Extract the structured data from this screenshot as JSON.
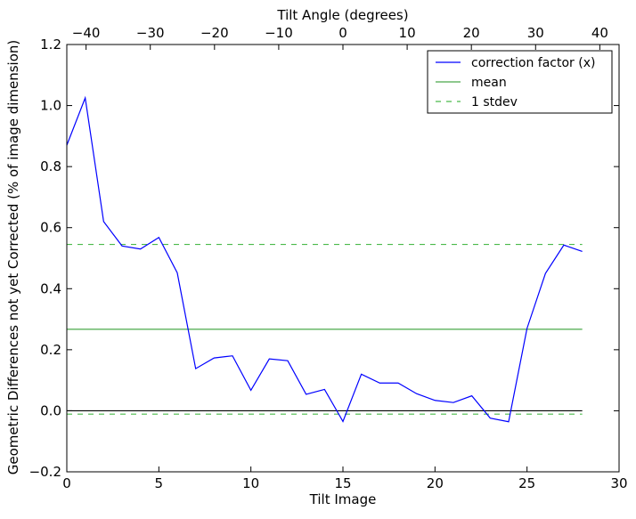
{
  "chart_data": {
    "type": "line",
    "xlabel": "Tilt Image",
    "ylabel": "Geometric Differences not yet Corrected (% of image dimension)",
    "top_xlabel": "Tilt Angle (degrees)",
    "xlim": [
      0,
      30
    ],
    "ylim": [
      -0.2,
      1.2
    ],
    "top_xlim": [
      -43,
      43
    ],
    "xticks": [
      0,
      5,
      10,
      15,
      20,
      25,
      30
    ],
    "yticks": [
      -0.2,
      0.0,
      0.2,
      0.4,
      0.6,
      0.8,
      1.0,
      1.2
    ],
    "ytick_labels": [
      "−0.2",
      "0.0",
      "0.2",
      "0.4",
      "0.6",
      "0.8",
      "1.0",
      "1.2"
    ],
    "top_xticks": [
      -40,
      -30,
      -20,
      -10,
      0,
      10,
      20,
      30,
      40
    ],
    "top_xtick_labels": [
      "−40",
      "−30",
      "−20",
      "−10",
      "0",
      "10",
      "20",
      "30",
      "40"
    ],
    "series": [
      {
        "name": "correction factor (x)",
        "color": "#0000ff",
        "style": "solid",
        "x": [
          0,
          1,
          2,
          3,
          4,
          5,
          6,
          7,
          8,
          9,
          10,
          11,
          12,
          13,
          14,
          15,
          16,
          17,
          18,
          19,
          20,
          21,
          22,
          23,
          24,
          25,
          26,
          27,
          28
        ],
        "values": [
          0.87,
          1.025,
          0.62,
          0.54,
          0.53,
          0.568,
          0.452,
          0.138,
          0.173,
          0.18,
          0.067,
          0.17,
          0.164,
          0.054,
          0.07,
          -0.035,
          0.12,
          0.091,
          0.091,
          0.056,
          0.034,
          0.027,
          0.049,
          -0.024,
          -0.036,
          0.27,
          0.45,
          0.543,
          0.522
        ]
      },
      {
        "name": "mean",
        "color": "#4aa84a",
        "style": "solid",
        "x": [
          0,
          28
        ],
        "values": [
          0.267,
          0.267
        ]
      },
      {
        "name": "1 stdev",
        "color": "#4aba4a",
        "style": "dashed",
        "x": [
          0,
          28
        ],
        "values": [
          0.545,
          0.545
        ],
        "lower_values": [
          -0.011,
          -0.011
        ]
      }
    ],
    "zero_line": {
      "x": [
        0,
        28
      ],
      "value": 0,
      "color": "#000000"
    },
    "legend_position": "top-right",
    "grid": false
  }
}
